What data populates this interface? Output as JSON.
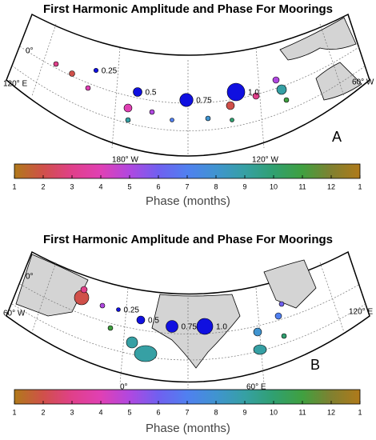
{
  "panels": [
    {
      "title": "First Harmonic Amplitude and Phase For Moorings",
      "letter": "A",
      "graticule_labels": [
        "0°",
        "120° E",
        "60° W",
        "180° W",
        "120° W"
      ],
      "amplitude_legend": [
        0.25,
        0.5,
        0.75,
        {
          "value": 1,
          "label": "1.0"
        }
      ]
    },
    {
      "title": "First Harmonic Amplitude and Phase For Moorings",
      "letter": "B",
      "graticule_labels": [
        "0°",
        "60° W",
        "120° E",
        "0°",
        "60° E"
      ],
      "amplitude_legend": [
        0.25,
        0.5,
        0.75,
        {
          "value": 1,
          "label": "1.0"
        }
      ]
    }
  ],
  "colorbar": {
    "label": "Phase (months)",
    "lim": [
      1,
      13
    ],
    "ticks": [
      1,
      2,
      3,
      4,
      5,
      6,
      7,
      8,
      9,
      10,
      11,
      12,
      {
        "value": 13,
        "label": "1"
      }
    ],
    "colors": [
      "#b07a1a",
      "#d0504a",
      "#e0408a",
      "#e040b4",
      "#b048e0",
      "#7060f0",
      "#5080f0",
      "#4094d0",
      "#36a0a4",
      "#30a070",
      "#40a040",
      "#808030",
      "#b07a1a"
    ]
  },
  "legend_color": "#1010e0"
}
